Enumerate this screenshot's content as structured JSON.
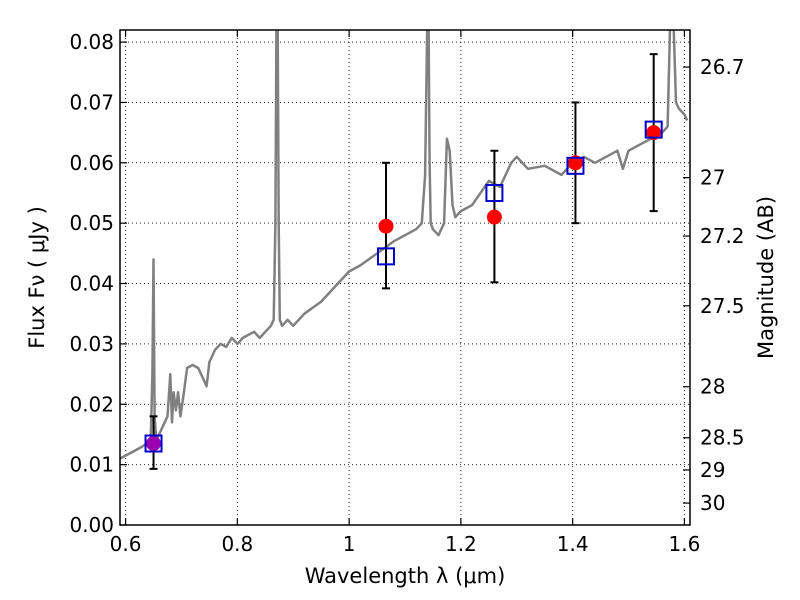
{
  "chart_data": {
    "type": "scatter",
    "xlabel": "Wavelength  λ (μm)",
    "ylabel": "Flux  Fν  ( μJy )",
    "ylabel_right": "Magnitude (AB)",
    "xlim": [
      0.59,
      1.61
    ],
    "ylim": [
      0.0,
      0.082
    ],
    "grid": true,
    "x_ticks": [
      {
        "value": 0.6,
        "label": "0.6"
      },
      {
        "value": 0.8,
        "label": "0.8"
      },
      {
        "value": 1.0,
        "label": "1"
      },
      {
        "value": 1.2,
        "label": "1.2"
      },
      {
        "value": 1.4,
        "label": "1.4"
      },
      {
        "value": 1.6,
        "label": "1.6"
      }
    ],
    "y_ticks": [
      {
        "value": 0.0,
        "label": "0.00"
      },
      {
        "value": 0.01,
        "label": "0.01"
      },
      {
        "value": 0.02,
        "label": "0.02"
      },
      {
        "value": 0.03,
        "label": "0.03"
      },
      {
        "value": 0.04,
        "label": "0.04"
      },
      {
        "value": 0.05,
        "label": "0.05"
      },
      {
        "value": 0.06,
        "label": "0.06"
      },
      {
        "value": 0.07,
        "label": "0.07"
      },
      {
        "value": 0.08,
        "label": "0.08"
      }
    ],
    "right_ticks": [
      {
        "mag": 26.7,
        "label": "26.7"
      },
      {
        "mag": 27.0,
        "label": "27"
      },
      {
        "mag": 27.2,
        "label": "27.2"
      },
      {
        "mag": 27.5,
        "label": "27.5"
      },
      {
        "mag": 28.0,
        "label": "28"
      },
      {
        "mag": 28.5,
        "label": "28.5"
      },
      {
        "mag": 29.0,
        "label": "29"
      },
      {
        "mag": 30.0,
        "label": "30"
      }
    ],
    "series": [
      {
        "type": "line",
        "color": "#808080",
        "x": [
          0.59,
          0.61,
          0.63,
          0.645,
          0.648,
          0.65,
          0.652,
          0.655,
          0.66,
          0.675,
          0.68,
          0.683,
          0.686,
          0.69,
          0.694,
          0.698,
          0.703,
          0.71,
          0.72,
          0.73,
          0.745,
          0.75,
          0.755,
          0.76,
          0.77,
          0.78,
          0.79,
          0.8,
          0.81,
          0.82,
          0.83,
          0.84,
          0.85,
          0.86,
          0.865,
          0.868,
          0.87,
          0.872,
          0.874,
          0.876,
          0.88,
          0.89,
          0.9,
          0.92,
          0.95,
          0.98,
          1.0,
          1.02,
          1.05,
          1.08,
          1.1,
          1.12,
          1.13,
          1.136,
          1.14,
          1.142,
          1.144,
          1.146,
          1.15,
          1.16,
          1.17,
          1.175,
          1.18,
          1.185,
          1.19,
          1.2,
          1.22,
          1.25,
          1.27,
          1.29,
          1.3,
          1.32,
          1.35,
          1.38,
          1.4,
          1.42,
          1.44,
          1.46,
          1.48,
          1.49,
          1.5,
          1.52,
          1.54,
          1.56,
          1.57,
          1.575,
          1.58,
          1.585,
          1.59,
          1.6,
          1.605
        ],
        "y": [
          0.011,
          0.012,
          0.013,
          0.014,
          0.025,
          0.044,
          0.018,
          0.014,
          0.015,
          0.018,
          0.025,
          0.017,
          0.022,
          0.019,
          0.022,
          0.018,
          0.021,
          0.026,
          0.0265,
          0.026,
          0.023,
          0.027,
          0.028,
          0.029,
          0.03,
          0.0295,
          0.031,
          0.03,
          0.031,
          0.0315,
          0.032,
          0.031,
          0.032,
          0.033,
          0.034,
          0.05,
          0.085,
          0.085,
          0.05,
          0.034,
          0.033,
          0.034,
          0.033,
          0.035,
          0.037,
          0.04,
          0.042,
          0.043,
          0.045,
          0.047,
          0.048,
          0.049,
          0.05,
          0.058,
          0.085,
          0.085,
          0.06,
          0.05,
          0.049,
          0.048,
          0.05,
          0.064,
          0.062,
          0.053,
          0.051,
          0.052,
          0.053,
          0.057,
          0.056,
          0.06,
          0.061,
          0.059,
          0.0595,
          0.058,
          0.06,
          0.061,
          0.06,
          0.061,
          0.062,
          0.059,
          0.062,
          0.063,
          0.064,
          0.065,
          0.066,
          0.085,
          0.085,
          0.07,
          0.069,
          0.068,
          0.067
        ]
      },
      {
        "type": "errorbar",
        "color": "#ff0000",
        "marker": "circle",
        "x": [
          0.65,
          1.066,
          1.26,
          1.405,
          1.545
        ],
        "y": [
          0.0135,
          0.0495,
          0.051,
          0.06,
          0.065
        ],
        "y_lo": [
          0.0093,
          0.0392,
          0.0402,
          0.05,
          0.052
        ],
        "y_hi": [
          0.018,
          0.06,
          0.062,
          0.07,
          0.078
        ],
        "point_colors": [
          "#9b00b0",
          "#ff0000",
          "#ff0000",
          "#ff0000",
          "#ff0000"
        ]
      },
      {
        "type": "scatter",
        "color": "#0000cc",
        "marker": "square",
        "x": [
          0.65,
          1.066,
          1.26,
          1.405,
          1.545
        ],
        "y": [
          0.0135,
          0.0445,
          0.055,
          0.0595,
          0.0655
        ]
      }
    ]
  }
}
